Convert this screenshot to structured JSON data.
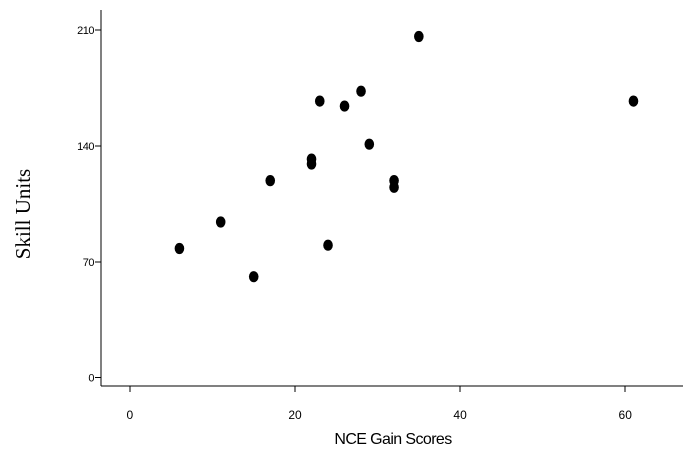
{
  "chart_data": {
    "type": "scatter",
    "title": "",
    "xlabel": "NCE Gain Scores",
    "ylabel": "Skill Units",
    "xlim": [
      -3.5,
      67
    ],
    "ylim": [
      -5,
      222
    ],
    "x_ticks": [
      {
        "value": 0,
        "label": "0"
      },
      {
        "value": 20,
        "label": "20"
      },
      {
        "value": 40,
        "label": "40"
      },
      {
        "value": 60,
        "label": "60"
      }
    ],
    "y_ticks": [
      {
        "value": 0,
        "label": "0"
      },
      {
        "value": 70,
        "label": "70"
      },
      {
        "value": 140,
        "label": "140"
      },
      {
        "value": 210,
        "label": "210"
      }
    ],
    "grid": false,
    "legend": "none",
    "marker_color": "#000000",
    "points": [
      {
        "x": 6,
        "y": 78
      },
      {
        "x": 11,
        "y": 94
      },
      {
        "x": 15,
        "y": 61
      },
      {
        "x": 17,
        "y": 119
      },
      {
        "x": 22,
        "y": 129
      },
      {
        "x": 22,
        "y": 132
      },
      {
        "x": 23,
        "y": 167
      },
      {
        "x": 24,
        "y": 80
      },
      {
        "x": 26,
        "y": 164
      },
      {
        "x": 28,
        "y": 173
      },
      {
        "x": 29,
        "y": 141
      },
      {
        "x": 32,
        "y": 115
      },
      {
        "x": 32,
        "y": 119
      },
      {
        "x": 35,
        "y": 206
      },
      {
        "x": 61,
        "y": 167
      }
    ]
  }
}
